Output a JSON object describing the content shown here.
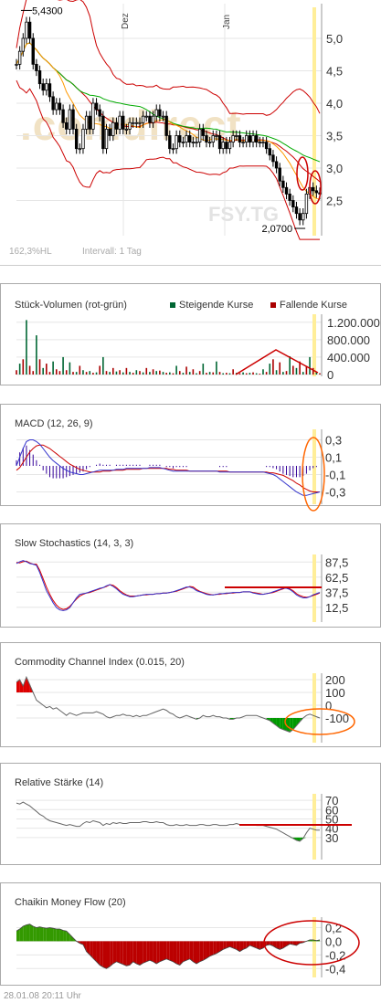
{
  "price": {
    "months": [
      "Dez",
      "Jan"
    ],
    "y_ticks": [
      "5,0",
      "4,5",
      "4,0",
      "3,5",
      "3,0",
      "2,5"
    ],
    "high_label": "5,4300",
    "low_label": "2,0700",
    "info_percent": "162,3%HL",
    "info_interval": "Intervall: 1 Tag",
    "watermark": ".comdirect",
    "watermark_symbol": "FSY.TG",
    "colors": {
      "bollinger": "#cc0000",
      "sma_green": "#00aa00",
      "sma_orange": "#ff9900",
      "candle": "#000000",
      "highlight": "#ffee99"
    }
  },
  "volume": {
    "title": "Stück-Volumen (rot-grün)",
    "legend_up": "Steigende Kurse",
    "legend_down": "Fallende Kurse",
    "y_ticks": [
      "1.200.000",
      "800.000",
      "400.000",
      "0"
    ],
    "colors": {
      "up": "#006633",
      "down": "#aa0000"
    }
  },
  "macd": {
    "title": "MACD (12, 26, 9)",
    "y_ticks": [
      "0,3",
      "0,1",
      "-0,1",
      "-0,3"
    ]
  },
  "stoch": {
    "title": "Slow Stochastics (14, 3, 3)",
    "y_ticks": [
      "87,5",
      "62,5",
      "37,5",
      "12,5"
    ]
  },
  "cci": {
    "title": "Commodity Channel Index (0.015, 20)",
    "y_ticks": [
      "200",
      "100",
      "0",
      "-100"
    ]
  },
  "rsi": {
    "title": "Relative Stärke (14)",
    "y_ticks": [
      "70",
      "60",
      "50",
      "40",
      "30"
    ]
  },
  "cmf": {
    "title": "Chaikin Money Flow (20)",
    "y_ticks": [
      "0,2",
      "0,0",
      "-0,2",
      "-0,4"
    ]
  },
  "footer": {
    "timestamp": "28.01.08   20:11 Uhr"
  },
  "chart_data": [
    {
      "type": "line",
      "title": "",
      "x": [
        0,
        1,
        2,
        3,
        4,
        5,
        6,
        7,
        8,
        9,
        10,
        11,
        12,
        13,
        14,
        15,
        16,
        17,
        18,
        19,
        20,
        21,
        22,
        23,
        24,
        25,
        26,
        27,
        28,
        29,
        30,
        31,
        32,
        33,
        34,
        35,
        36,
        37,
        38,
        39,
        40,
        41,
        42,
        43,
        44,
        45,
        46,
        47,
        48,
        49,
        50,
        51,
        52,
        53,
        54,
        55,
        56,
        57,
        58,
        59,
        60,
        61,
        62,
        63,
        64,
        65,
        66,
        67,
        68,
        69,
        70,
        71,
        72,
        73,
        74,
        75,
        76,
        77,
        78,
        79,
        80,
        81,
        82,
        83,
        84,
        85,
        86,
        87,
        88,
        89,
        90,
        91
      ],
      "series": [
        {
          "name": "",
          "values": [
            4.6,
            4.8,
            5.0,
            5.25,
            5.0,
            4.6,
            4.5,
            4.3,
            4.2,
            4.3,
            4.1,
            3.9,
            4.0,
            3.9,
            3.7,
            3.6,
            3.9,
            3.6,
            3.3,
            3.3,
            3.6,
            3.8,
            3.6,
            4.0,
            3.9,
            3.8,
            3.3,
            3.6,
            3.5,
            3.7,
            3.6,
            3.8,
            3.6,
            3.6,
            3.7,
            3.7,
            3.7,
            3.7,
            3.8,
            3.8,
            3.7,
            3.8,
            3.9,
            3.8,
            3.8,
            3.5,
            3.3,
            3.3,
            3.5,
            3.4,
            3.4,
            3.5,
            3.4,
            3.4,
            3.4,
            3.6,
            3.5,
            3.4,
            3.4,
            3.5,
            3.5,
            3.3,
            3.4,
            3.3,
            3.4,
            3.5,
            3.5,
            3.4,
            3.4,
            3.5,
            3.4,
            3.5,
            3.4,
            3.4,
            3.4,
            3.3,
            3.2,
            3.1,
            3.0,
            2.8,
            2.7,
            2.6,
            2.5,
            2.4,
            2.3,
            2.2,
            2.3,
            2.6,
            2.7,
            2.65,
            2.62,
            2.6
          ]
        }
      ],
      "ylim": [
        2.0,
        5.45
      ],
      "high": 5.43,
      "low": 2.07
    },
    {
      "type": "bar",
      "title": "Stück-Volumen (rot-grün)",
      "values": [
        100000,
        250000,
        350000,
        1250000,
        200000,
        80000,
        900000,
        350000,
        150000,
        250000,
        60000,
        300000,
        120000,
        80000,
        400000,
        100000,
        280000,
        60000,
        60000,
        200000,
        100000,
        60000,
        80000,
        40000,
        50000,
        200000,
        400000,
        80000,
        60000,
        150000,
        70000,
        100000,
        50000,
        150000,
        60000,
        40000,
        100000,
        80000,
        50000,
        150000,
        60000,
        120000,
        80000,
        90000,
        60000,
        40000,
        50000,
        30000,
        200000,
        80000,
        40000,
        180000,
        60000,
        120000,
        30000,
        80000,
        250000,
        40000,
        60000,
        50000,
        300000,
        60000,
        30000,
        40000,
        30000,
        120000,
        40000,
        30000,
        50000,
        30000,
        40000,
        50000,
        30000,
        20000,
        120000,
        60000,
        250000,
        350000,
        100000,
        280000,
        60000,
        80000,
        420000,
        200000,
        150000,
        300000,
        60000,
        200000,
        400000,
        150000,
        60000,
        30000
      ],
      "up": [
        false,
        true,
        false,
        true,
        false,
        false,
        true,
        false,
        true,
        false,
        false,
        true,
        false,
        false,
        true,
        false,
        true,
        false,
        true,
        false,
        true,
        false,
        true,
        false,
        true,
        false,
        true,
        false,
        true,
        false,
        true,
        false,
        true,
        false,
        true,
        false,
        true,
        false,
        true,
        false,
        true,
        false,
        true,
        false,
        true,
        false,
        true,
        false,
        true,
        false,
        true,
        false,
        true,
        false,
        true,
        false,
        true,
        false,
        true,
        false,
        true,
        false,
        true,
        false,
        true,
        false,
        true,
        false,
        true,
        false,
        true,
        false,
        true,
        false,
        true,
        false,
        true,
        false,
        true,
        false,
        true,
        false,
        true,
        false,
        true,
        false,
        true,
        false,
        true,
        false,
        true,
        false
      ],
      "ylim": [
        0,
        1300000
      ]
    },
    {
      "type": "line",
      "title": "MACD (12, 26, 9)",
      "series": [
        {
          "name": "",
          "values": [
            0.0,
            0.1,
            0.2,
            0.28,
            0.3,
            0.3,
            0.28,
            0.25,
            0.2,
            0.15,
            0.1,
            0.06,
            0.03,
            0.0,
            -0.03,
            -0.05,
            -0.07,
            -0.08,
            -0.09,
            -0.1,
            -0.1,
            -0.09,
            -0.08,
            -0.07,
            -0.06,
            -0.05,
            -0.05,
            -0.05,
            -0.05,
            -0.05,
            -0.04,
            -0.04,
            -0.04,
            -0.03,
            -0.03,
            -0.03,
            -0.03,
            -0.03,
            -0.03,
            -0.03,
            -0.02,
            -0.02,
            -0.02,
            -0.02,
            -0.03,
            -0.04,
            -0.05,
            -0.06,
            -0.06,
            -0.06,
            -0.06,
            -0.06,
            -0.06,
            -0.06,
            -0.06,
            -0.06,
            -0.06,
            -0.06,
            -0.06,
            -0.06,
            -0.06,
            -0.07,
            -0.07,
            -0.07,
            -0.07,
            -0.07,
            -0.07,
            -0.07,
            -0.07,
            -0.07,
            -0.07,
            -0.07,
            -0.07,
            -0.07,
            -0.07,
            -0.08,
            -0.09,
            -0.1,
            -0.12,
            -0.15,
            -0.18,
            -0.21,
            -0.24,
            -0.27,
            -0.3,
            -0.32,
            -0.34,
            -0.34,
            -0.33,
            -0.32,
            -0.31,
            -0.3
          ]
        },
        {
          "name": "",
          "values": [
            -0.05,
            -0.02,
            0.04,
            0.1,
            0.16,
            0.2,
            0.23,
            0.24,
            0.24,
            0.22,
            0.2,
            0.17,
            0.14,
            0.11,
            0.08,
            0.05,
            0.02,
            0.0,
            -0.02,
            -0.04,
            -0.05,
            -0.06,
            -0.07,
            -0.07,
            -0.07,
            -0.07,
            -0.06,
            -0.06,
            -0.06,
            -0.05,
            -0.05,
            -0.05,
            -0.05,
            -0.04,
            -0.04,
            -0.04,
            -0.04,
            -0.04,
            -0.03,
            -0.03,
            -0.03,
            -0.03,
            -0.03,
            -0.03,
            -0.03,
            -0.03,
            -0.04,
            -0.04,
            -0.05,
            -0.05,
            -0.05,
            -0.05,
            -0.06,
            -0.06,
            -0.06,
            -0.06,
            -0.06,
            -0.06,
            -0.06,
            -0.06,
            -0.06,
            -0.06,
            -0.06,
            -0.06,
            -0.07,
            -0.07,
            -0.07,
            -0.07,
            -0.07,
            -0.07,
            -0.07,
            -0.07,
            -0.07,
            -0.07,
            -0.07,
            -0.07,
            -0.08,
            -0.08,
            -0.09,
            -0.1,
            -0.11,
            -0.13,
            -0.15,
            -0.17,
            -0.2,
            -0.22,
            -0.25,
            -0.27,
            -0.29,
            -0.3,
            -0.3,
            -0.3
          ]
        }
      ],
      "ylim": [
        -0.4,
        0.4
      ]
    },
    {
      "type": "line",
      "title": "Slow Stochastics (14, 3, 3)",
      "series": [
        {
          "name": "",
          "values": [
            85,
            88,
            90,
            88,
            85,
            84,
            82,
            70,
            55,
            40,
            30,
            20,
            12,
            8,
            7,
            8,
            12,
            20,
            28,
            34,
            35,
            36,
            38,
            40,
            42,
            44,
            45,
            48,
            50,
            47,
            43,
            38,
            34,
            32,
            30,
            30,
            31,
            32,
            33,
            34,
            34,
            34,
            35,
            35,
            36,
            36,
            37,
            38,
            40,
            42,
            44,
            46,
            46,
            44,
            40,
            38,
            36,
            34,
            33,
            33,
            34,
            35,
            35,
            36,
            36,
            37,
            37,
            37,
            38,
            38,
            38,
            36,
            35,
            34,
            34,
            35,
            36,
            38,
            40,
            42,
            44,
            44,
            42,
            38,
            33,
            30,
            28,
            28,
            30,
            33,
            35,
            37
          ]
        },
        {
          "name": "",
          "values": [
            87,
            86,
            88,
            89,
            86,
            84,
            84,
            74,
            60,
            46,
            34,
            24,
            16,
            11,
            9,
            10,
            14,
            20,
            26,
            31,
            34,
            36,
            37,
            39,
            41,
            43,
            45,
            47,
            50,
            49,
            45,
            40,
            36,
            33,
            31,
            31,
            31,
            32,
            33,
            33,
            34,
            34,
            35,
            35,
            36,
            36,
            37,
            38,
            39,
            41,
            43,
            45,
            47,
            46,
            42,
            39,
            37,
            35,
            34,
            33,
            34,
            34,
            35,
            35,
            36,
            36,
            37,
            37,
            38,
            38,
            38,
            37,
            36,
            35,
            34,
            35,
            36,
            37,
            39,
            41,
            43,
            45,
            43,
            40,
            35,
            32,
            30,
            29,
            30,
            32,
            34,
            36
          ]
        }
      ],
      "ylim": [
        0,
        100
      ]
    },
    {
      "type": "area",
      "title": "Commodity Channel Index (0.015, 20)",
      "series": [
        {
          "name": "",
          "values": [
            180,
            200,
            150,
            220,
            160,
            100,
            40,
            20,
            0,
            -20,
            -10,
            -30,
            -20,
            -40,
            -60,
            -80,
            -60,
            -70,
            -80,
            -70,
            -60,
            -60,
            -60,
            -60,
            -50,
            -60,
            -70,
            -90,
            -100,
            -90,
            -80,
            -80,
            -70,
            -80,
            -80,
            -90,
            -80,
            -90,
            -80,
            -80,
            -70,
            -60,
            -50,
            -40,
            -30,
            -40,
            -60,
            -70,
            -90,
            -100,
            -90,
            -80,
            -90,
            -100,
            -110,
            -100,
            -80,
            -90,
            -90,
            -80,
            -90,
            -90,
            -100,
            -100,
            -110,
            -110,
            -100,
            -100,
            -90,
            -80,
            -80,
            -80,
            -80,
            -90,
            -100,
            -110,
            -120,
            -140,
            -160,
            -180,
            -190,
            -200,
            -210,
            -190,
            -160,
            -130,
            -100,
            -80,
            -70,
            -80,
            -90,
            -100
          ]
        }
      ],
      "ylim": [
        -250,
        250
      ]
    },
    {
      "type": "line",
      "title": "Relative Stärke (14)",
      "series": [
        {
          "name": "",
          "values": [
            67,
            66,
            68,
            66,
            64,
            61,
            58,
            55,
            53,
            50,
            48,
            47,
            46,
            45,
            44,
            43,
            44,
            43,
            42,
            42,
            45,
            47,
            46,
            48,
            47,
            46,
            43,
            45,
            44,
            46,
            45,
            46,
            45,
            45,
            46,
            46,
            46,
            46,
            47,
            47,
            46,
            46,
            47,
            46,
            46,
            44,
            43,
            43,
            44,
            43,
            43,
            44,
            43,
            43,
            43,
            44,
            44,
            43,
            43,
            44,
            44,
            43,
            43,
            43,
            44,
            44,
            45,
            44,
            44,
            44,
            44,
            44,
            43,
            43,
            43,
            42,
            41,
            40,
            39,
            37,
            35,
            33,
            31,
            29,
            27,
            26,
            29,
            35,
            40,
            39,
            38,
            38
          ]
        }
      ],
      "ylim": [
        20,
        75
      ]
    },
    {
      "type": "area",
      "title": "Chaikin Money Flow (20)",
      "series": [
        {
          "name": "",
          "values": [
            0.15,
            0.18,
            0.22,
            0.24,
            0.25,
            0.22,
            0.2,
            0.21,
            0.2,
            0.19,
            0.2,
            0.19,
            0.18,
            0.18,
            0.16,
            0.15,
            0.1,
            0.05,
            0.0,
            -0.03,
            -0.05,
            -0.15,
            -0.2,
            -0.25,
            -0.3,
            -0.35,
            -0.38,
            -0.4,
            -0.37,
            -0.33,
            -0.3,
            -0.32,
            -0.34,
            -0.36,
            -0.35,
            -0.3,
            -0.33,
            -0.35,
            -0.32,
            -0.3,
            -0.28,
            -0.3,
            -0.33,
            -0.3,
            -0.28,
            -0.26,
            -0.28,
            -0.3,
            -0.33,
            -0.35,
            -0.3,
            -0.28,
            -0.26,
            -0.3,
            -0.33,
            -0.3,
            -0.28,
            -0.25,
            -0.22,
            -0.2,
            -0.18,
            -0.15,
            -0.12,
            -0.1,
            -0.08,
            -0.1,
            -0.12,
            -0.15,
            -0.12,
            -0.1,
            -0.06,
            -0.08,
            -0.1,
            -0.12,
            -0.1,
            -0.06,
            -0.05,
            -0.07,
            -0.1,
            -0.12,
            -0.1,
            -0.07,
            -0.04,
            -0.05,
            -0.06,
            -0.03,
            -0.02,
            0.0,
            0.02,
            0.02,
            0.01,
            0.02
          ]
        }
      ],
      "ylim": [
        -0.45,
        0.3
      ]
    }
  ]
}
